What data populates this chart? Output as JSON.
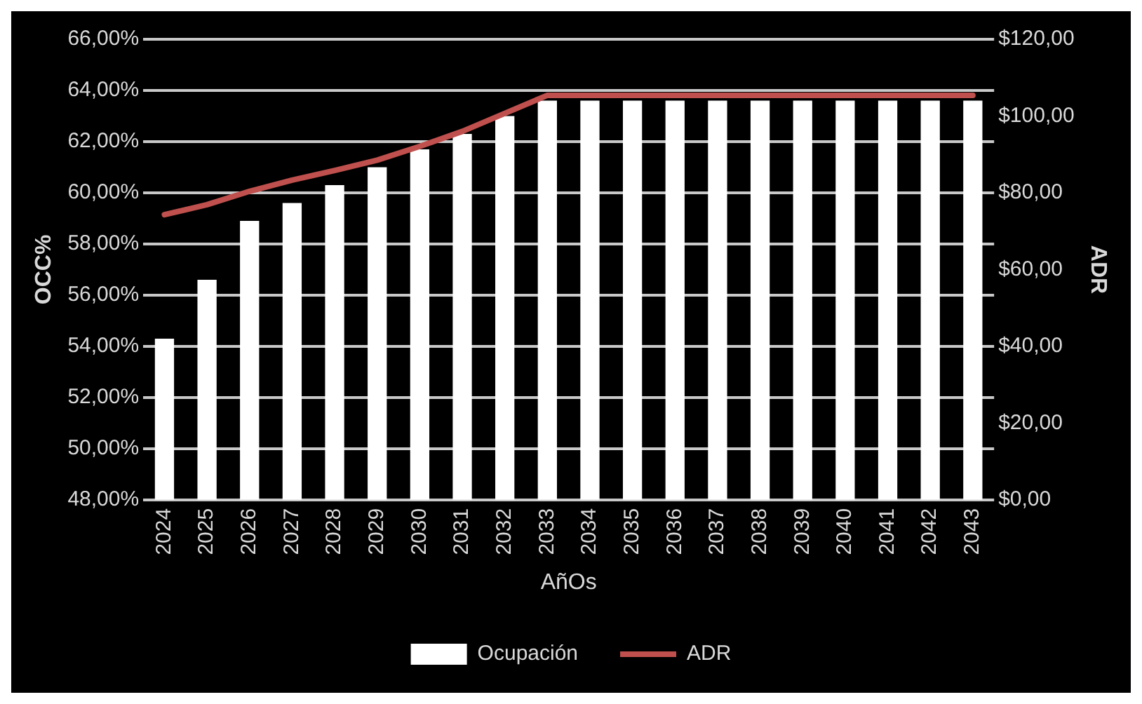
{
  "chart_data": {
    "type": "bar",
    "xlabel": "AñOs",
    "ylabel": "OCC%",
    "y2label": "ADR",
    "categories": [
      "2024",
      "2025",
      "2026",
      "2027",
      "2028",
      "2029",
      "2030",
      "2031",
      "2032",
      "2033",
      "2034",
      "2035",
      "2036",
      "2037",
      "2038",
      "2039",
      "2040",
      "2041",
      "2042",
      "2043"
    ],
    "series": [
      {
        "name": "Ocupación",
        "color": "#ffffff",
        "values": [
          54.3,
          56.6,
          58.9,
          59.6,
          60.3,
          61.0,
          61.7,
          62.3,
          63.0,
          63.6,
          63.6,
          63.6,
          63.6,
          63.6,
          63.6,
          63.6,
          63.6,
          63.6,
          63.6,
          63.6
        ]
      },
      {
        "name": "ADR",
        "type": "line",
        "axis": "y2",
        "color": "#c0504d",
        "values": [
          74.3,
          76.9,
          80.4,
          83.3,
          85.8,
          88.5,
          92.1,
          96.0,
          100.7,
          105.4,
          105.4,
          105.4,
          105.4,
          105.4,
          105.4,
          105.4,
          105.4,
          105.4,
          105.4,
          105.4
        ]
      }
    ],
    "ylim": [
      48,
      66
    ],
    "yticks": [
      {
        "value": 48,
        "label": "48,00%"
      },
      {
        "value": 50,
        "label": "50,00%"
      },
      {
        "value": 52,
        "label": "52,00%"
      },
      {
        "value": 54,
        "label": "54,00%"
      },
      {
        "value": 56,
        "label": "56,00%"
      },
      {
        "value": 58,
        "label": "58,00%"
      },
      {
        "value": 60,
        "label": "60,00%"
      },
      {
        "value": 62,
        "label": "62,00%"
      },
      {
        "value": 64,
        "label": "64,00%"
      },
      {
        "value": 66,
        "label": "66,00%"
      }
    ],
    "y2lim": [
      0,
      120
    ],
    "y2ticks": [
      {
        "value": 0,
        "label": "$0,00"
      },
      {
        "value": 20,
        "label": "$20,00"
      },
      {
        "value": 40,
        "label": "$40,00"
      },
      {
        "value": 60,
        "label": "$60,00"
      },
      {
        "value": 80,
        "label": "$80,00"
      },
      {
        "value": 100,
        "label": "$100,00"
      },
      {
        "value": 120,
        "label": "$120,00"
      }
    ],
    "grid": "y",
    "legend": "bottom",
    "marker": "none",
    "line_style": "solid"
  }
}
